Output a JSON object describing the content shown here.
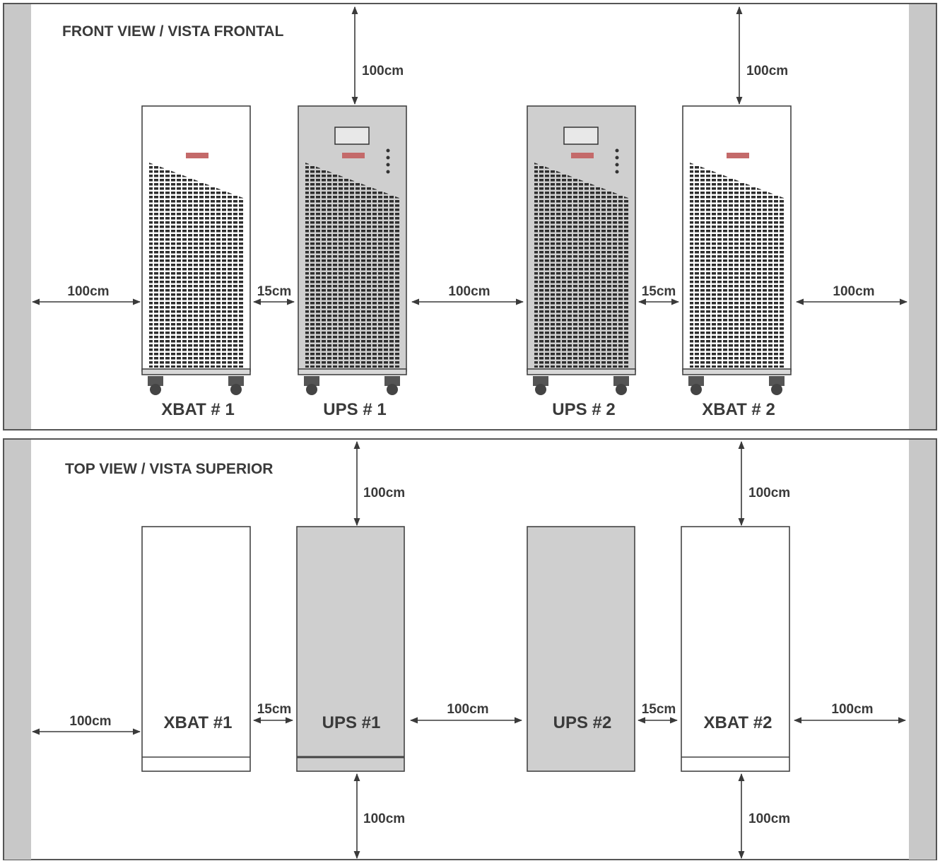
{
  "front_view": {
    "title": "FRONT VIEW / VISTA FRONTAL",
    "units": [
      {
        "label": "XBAT # 1",
        "kind": "battery"
      },
      {
        "label": "UPS # 1",
        "kind": "ups"
      },
      {
        "label": "UPS # 2",
        "kind": "ups"
      },
      {
        "label": "XBAT # 2",
        "kind": "battery"
      }
    ],
    "dimensions": {
      "top_left": "100cm",
      "top_right": "100cm",
      "wall_left": "100cm",
      "gap_left": "15cm",
      "center": "100cm",
      "gap_right": "15cm",
      "wall_right": "100cm"
    }
  },
  "top_view": {
    "title": "TOP VIEW / VISTA SUPERIOR",
    "units": [
      {
        "label": "XBAT #1",
        "kind": "battery"
      },
      {
        "label": "UPS #1",
        "kind": "ups"
      },
      {
        "label": "UPS #2",
        "kind": "ups"
      },
      {
        "label": "XBAT #2",
        "kind": "battery"
      }
    ],
    "dimensions": {
      "top_left": "100cm",
      "top_right": "100cm",
      "wall_left": "100cm",
      "gap_left": "15cm",
      "center": "100cm",
      "gap_right": "15cm",
      "wall_right": "100cm",
      "bottom_left": "100cm",
      "bottom_right": "100cm"
    }
  },
  "colors": {
    "wall": "#c8c8c8",
    "ups_body": "#cfcfcf",
    "battery_body": "#ffffff",
    "line": "#3a3a3a"
  }
}
